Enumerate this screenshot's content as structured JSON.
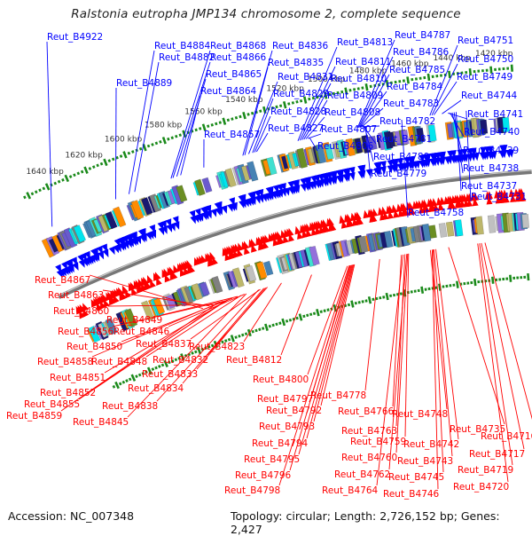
{
  "title": "Ralstonia eutropha JMP134 chromosome 2, complete sequence",
  "footer": {
    "accession": "Accession: NC_007348",
    "summary": "Topology: circular; Length: 2,726,152 bp; Genes: 2,427"
  },
  "genome": {
    "length_bp": 2726152,
    "topology": "circular",
    "genes": 2427,
    "view_start_kbp": 1650,
    "view_end_kbp": 1410
  },
  "colors": {
    "forward_label": "#0000ff",
    "reverse_label": "#ff0000",
    "forward_gene": "#0000ff",
    "reverse_gene": "#ff0000",
    "backbone": "#777777",
    "tick_dot": "#1a8a1a"
  },
  "ticks": [
    {
      "label": "1640 kbp",
      "kbp": 1640
    },
    {
      "label": "1620 kbp",
      "kbp": 1620
    },
    {
      "label": "1600 kbp",
      "kbp": 1600
    },
    {
      "label": "1580 kbp",
      "kbp": 1580
    },
    {
      "label": "1560 kbp",
      "kbp": 1560
    },
    {
      "label": "1540 kbp",
      "kbp": 1540
    },
    {
      "label": "1520 kbp",
      "kbp": 1520
    },
    {
      "label": "1500 kbp",
      "kbp": 1500
    },
    {
      "label": "1480 kbp",
      "kbp": 1480
    },
    {
      "label": "1460 kbp",
      "kbp": 1460
    },
    {
      "label": "1440 kbp",
      "kbp": 1440
    },
    {
      "label": "1420 kbp",
      "kbp": 1420
    }
  ],
  "forward_labels": [
    {
      "name": "Reut_B4922",
      "kbp": 1646
    },
    {
      "name": "Reut_B4884",
      "kbp": 1605
    },
    {
      "name": "Reut_B4882",
      "kbp": 1602
    },
    {
      "name": "Reut_B4889",
      "kbp": 1612
    },
    {
      "name": "Reut_B4868",
      "kbp": 1583
    },
    {
      "name": "Reut_B4866",
      "kbp": 1582
    },
    {
      "name": "Reut_B4865",
      "kbp": 1580
    },
    {
      "name": "Reut_B4864",
      "kbp": 1578
    },
    {
      "name": "Reut_B4857",
      "kbp": 1566
    },
    {
      "name": "Reut_B4836",
      "kbp": 1546
    },
    {
      "name": "Reut_B4835",
      "kbp": 1545
    },
    {
      "name": "Reut_B4831",
      "kbp": 1543
    },
    {
      "name": "Reut_B4829",
      "kbp": 1541
    },
    {
      "name": "Reut_B4828",
      "kbp": 1540
    },
    {
      "name": "Reut_B4827",
      "kbp": 1539
    },
    {
      "name": "Reut_B4813",
      "kbp": 1518
    },
    {
      "name": "Reut_B4811",
      "kbp": 1517
    },
    {
      "name": "Reut_B4810",
      "kbp": 1516
    },
    {
      "name": "Reut_B4809",
      "kbp": 1515
    },
    {
      "name": "Reut_B4808",
      "kbp": 1514
    },
    {
      "name": "Reut_B4807",
      "kbp": 1513
    },
    {
      "name": "Reut_B4806",
      "kbp": 1512
    },
    {
      "name": "Reut_B4787",
      "kbp": 1488
    },
    {
      "name": "Reut_B4786",
      "kbp": 1487.5
    },
    {
      "name": "Reut_B4785",
      "kbp": 1487
    },
    {
      "name": "Reut_B4784",
      "kbp": 1486.5
    },
    {
      "name": "Reut_B4783",
      "kbp": 1486
    },
    {
      "name": "Reut_B4782",
      "kbp": 1485.5
    },
    {
      "name": "Reut_B4781",
      "kbp": 1485
    },
    {
      "name": "Reut_B4780",
      "kbp": 1484.5
    },
    {
      "name": "Reut_B4779",
      "kbp": 1484
    },
    {
      "name": "Reut_B4758",
      "kbp": 1466
    },
    {
      "name": "Reut_B4751",
      "kbp": 1452
    },
    {
      "name": "Reut_B4750",
      "kbp": 1451
    },
    {
      "name": "Reut_B4749",
      "kbp": 1450
    },
    {
      "name": "Reut_B4744",
      "kbp": 1446
    },
    {
      "name": "Reut_B4741",
      "kbp": 1443
    },
    {
      "name": "Reut_B4740",
      "kbp": 1442
    },
    {
      "name": "Reut_B4739",
      "kbp": 1441
    },
    {
      "name": "Reut_B4738",
      "kbp": 1440
    },
    {
      "name": "Reut_B4737",
      "kbp": 1439
    },
    {
      "name": "Reut_B4731",
      "kbp": 1434
    }
  ],
  "reverse_labels": [
    {
      "name": "Reut_B4867",
      "kbp": 1590
    },
    {
      "name": "Reut_B4863",
      "kbp": 1586
    },
    {
      "name": "Reut_B4860",
      "kbp": 1584
    },
    {
      "name": "Reut_B4849",
      "kbp": 1570
    },
    {
      "name": "Reut_B4856",
      "kbp": 1578
    },
    {
      "name": "Reut_B4846",
      "kbp": 1566
    },
    {
      "name": "Reut_B4850",
      "kbp": 1573
    },
    {
      "name": "Reut_B4858",
      "kbp": 1580
    },
    {
      "name": "Reut_B4848",
      "kbp": 1568
    },
    {
      "name": "Reut_B4851",
      "kbp": 1575
    },
    {
      "name": "Reut_B4852",
      "kbp": 1576
    },
    {
      "name": "Reut_B4855",
      "kbp": 1577
    },
    {
      "name": "Reut_B4859",
      "kbp": 1582
    },
    {
      "name": "Reut_B4845",
      "kbp": 1565
    },
    {
      "name": "Reut_B4837",
      "kbp": 1557
    },
    {
      "name": "Reut_B4832",
      "kbp": 1553
    },
    {
      "name": "Reut_B4833",
      "kbp": 1554
    },
    {
      "name": "Reut_B4834",
      "kbp": 1555
    },
    {
      "name": "Reut_B4838",
      "kbp": 1558
    },
    {
      "name": "Reut_B4823",
      "kbp": 1545
    },
    {
      "name": "Reut_B4812",
      "kbp": 1528
    },
    {
      "name": "Reut_B4800",
      "kbp": 1508
    },
    {
      "name": "Reut_B4797",
      "kbp": 1506
    },
    {
      "name": "Reut_B4792",
      "kbp": 1504
    },
    {
      "name": "Reut_B4793",
      "kbp": 1504.5
    },
    {
      "name": "Reut_B4794",
      "kbp": 1505
    },
    {
      "name": "Reut_B4795",
      "kbp": 1505.5
    },
    {
      "name": "Reut_B4796",
      "kbp": 1506.5
    },
    {
      "name": "Reut_B4798",
      "kbp": 1507
    },
    {
      "name": "Reut_B4778",
      "kbp": 1490
    },
    {
      "name": "Reut_B4766",
      "kbp": 1478
    },
    {
      "name": "Reut_B4763",
      "kbp": 1476
    },
    {
      "name": "Reut_B4759",
      "kbp": 1474
    },
    {
      "name": "Reut_B4760",
      "kbp": 1474.5
    },
    {
      "name": "Reut_B4762",
      "kbp": 1475
    },
    {
      "name": "Reut_B4764",
      "kbp": 1477
    },
    {
      "name": "Reut_B4748",
      "kbp": 1462
    },
    {
      "name": "Reut_B4742",
      "kbp": 1459
    },
    {
      "name": "Reut_B4743",
      "kbp": 1460
    },
    {
      "name": "Reut_B4745",
      "kbp": 1460.5
    },
    {
      "name": "Reut_B4746",
      "kbp": 1461
    },
    {
      "name": "Reut_B4735",
      "kbp": 1452
    },
    {
      "name": "Reut_B4716",
      "kbp": 1432
    },
    {
      "name": "Reut_B4717",
      "kbp": 1434
    },
    {
      "name": "Reut_B4719",
      "kbp": 1435
    },
    {
      "name": "Reut_B4720",
      "kbp": 1436
    }
  ]
}
